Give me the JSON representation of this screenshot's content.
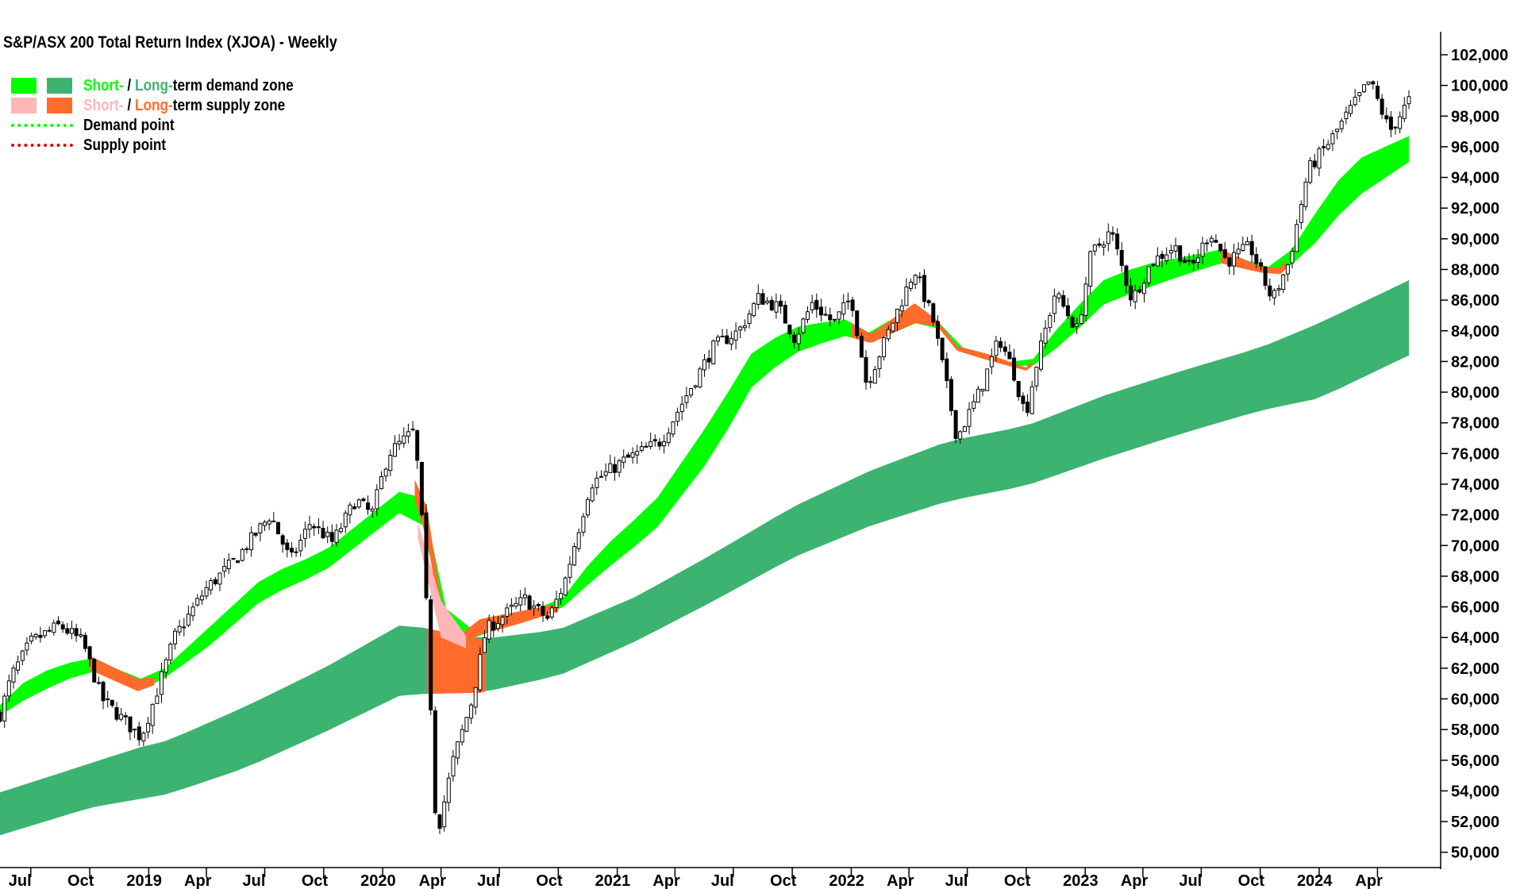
{
  "title": "S&P/ASX 200 Total Return Index (XJOA) - Weekly",
  "colors": {
    "short_demand": "#00ff00",
    "long_demand": "#3cb371",
    "short_supply": "#ffb6b9",
    "long_supply": "#ff6b2b",
    "demand_point": "#00ff00",
    "supply_point": "#dd0000"
  },
  "legend": {
    "demand_zone": {
      "short": "Short-",
      "sep": " / ",
      "long": "Long-",
      "rest": "term demand zone"
    },
    "supply_zone": {
      "short": "Short-",
      "sep": " / ",
      "long": "Long-",
      "rest": "term supply zone"
    },
    "demand_point": "Demand point",
    "supply_point": "Supply point"
  },
  "chart_data": {
    "type": "candlestick",
    "frequency": "weekly",
    "title": "S&P/ASX 200 Total Return Index (XJOA) - Weekly",
    "y_axis": {
      "position": "right",
      "min": 49000,
      "max": 103500,
      "ticks": [
        50000,
        52000,
        54000,
        56000,
        58000,
        60000,
        62000,
        64000,
        66000,
        68000,
        70000,
        72000,
        74000,
        76000,
        78000,
        80000,
        82000,
        84000,
        86000,
        88000,
        90000,
        92000,
        94000,
        96000,
        98000,
        100000,
        102000
      ],
      "tick_labels": [
        "50,000",
        "52,000",
        "54,000",
        "56,000",
        "58,000",
        "60,000",
        "62,000",
        "64,000",
        "66,000",
        "68,000",
        "70,000",
        "72,000",
        "74,000",
        "76,000",
        "78,000",
        "80,000",
        "82,000",
        "84,000",
        "86,000",
        "88,000",
        "90,000",
        "92,000",
        "94,000",
        "96,000",
        "98,000",
        "100,000",
        "102,000"
      ]
    },
    "x_axis": {
      "range": [
        "2018-05-14",
        "2024-05-20"
      ],
      "ticks": [
        {
          "date": "2018-07-01",
          "label": "Jul"
        },
        {
          "date": "2018-10-01",
          "label": "Oct"
        },
        {
          "date": "2019-01-01",
          "label": "2019"
        },
        {
          "date": "2019-04-01",
          "label": "Apr"
        },
        {
          "date": "2019-07-01",
          "label": "Jul"
        },
        {
          "date": "2019-10-01",
          "label": "Oct"
        },
        {
          "date": "2020-01-01",
          "label": "2020"
        },
        {
          "date": "2020-04-01",
          "label": "Apr"
        },
        {
          "date": "2020-07-01",
          "label": "Jul"
        },
        {
          "date": "2020-10-01",
          "label": "Oct"
        },
        {
          "date": "2021-01-01",
          "label": "2021"
        },
        {
          "date": "2021-04-01",
          "label": "Apr"
        },
        {
          "date": "2021-07-01",
          "label": "Jul"
        },
        {
          "date": "2021-10-01",
          "label": "Oct"
        },
        {
          "date": "2022-01-01",
          "label": "2022"
        },
        {
          "date": "2022-04-01",
          "label": "Apr"
        },
        {
          "date": "2022-07-01",
          "label": "Jul"
        },
        {
          "date": "2022-10-01",
          "label": "Oct"
        },
        {
          "date": "2023-01-01",
          "label": "2023"
        },
        {
          "date": "2023-04-01",
          "label": "Apr"
        },
        {
          "date": "2023-07-01",
          "label": "Jul"
        },
        {
          "date": "2023-10-01",
          "label": "Oct"
        },
        {
          "date": "2024-01-01",
          "label": "2024"
        },
        {
          "date": "2024-04-01",
          "label": "Apr"
        }
      ]
    },
    "price_path": [
      [
        "2018-05-14",
        59000
      ],
      [
        "2018-06-01",
        61500
      ],
      [
        "2018-07-01",
        63700
      ],
      [
        "2018-08-15",
        64800
      ],
      [
        "2018-09-20",
        63700
      ],
      [
        "2018-10-20",
        60000
      ],
      [
        "2018-12-20",
        57500
      ],
      [
        "2019-01-10",
        60000
      ],
      [
        "2019-02-10",
        64000
      ],
      [
        "2019-04-01",
        67200
      ],
      [
        "2019-05-15",
        69000
      ],
      [
        "2019-07-10",
        72000
      ],
      [
        "2019-08-10",
        69000
      ],
      [
        "2019-09-10",
        71500
      ],
      [
        "2019-10-15",
        70200
      ],
      [
        "2019-11-20",
        73000
      ],
      [
        "2019-12-15",
        72000
      ],
      [
        "2020-01-10",
        76000
      ],
      [
        "2020-02-20",
        77500
      ],
      [
        "2020-03-05",
        70000
      ],
      [
        "2020-03-25",
        51000
      ],
      [
        "2020-04-20",
        56000
      ],
      [
        "2020-05-20",
        60000
      ],
      [
        "2020-06-10",
        64500
      ],
      [
        "2020-07-10",
        65500
      ],
      [
        "2020-08-10",
        66500
      ],
      [
        "2020-09-15",
        65200
      ],
      [
        "2020-10-10",
        67500
      ],
      [
        "2020-11-20",
        74000
      ],
      [
        "2021-01-10",
        75500
      ],
      [
        "2021-03-10",
        76800
      ],
      [
        "2021-04-15",
        79500
      ],
      [
        "2021-06-01",
        83000
      ],
      [
        "2021-07-10",
        84000
      ],
      [
        "2021-08-10",
        86200
      ],
      [
        "2021-09-10",
        85500
      ],
      [
        "2021-10-05",
        83500
      ],
      [
        "2021-11-01",
        85800
      ],
      [
        "2021-12-05",
        84500
      ],
      [
        "2022-01-01",
        86200
      ],
      [
        "2022-01-25",
        80500
      ],
      [
        "2022-03-01",
        84000
      ],
      [
        "2022-04-10",
        88000
      ],
      [
        "2022-05-10",
        84500
      ],
      [
        "2022-06-15",
        77000
      ],
      [
        "2022-07-20",
        80000
      ],
      [
        "2022-08-20",
        83500
      ],
      [
        "2022-09-10",
        81500
      ],
      [
        "2022-09-30",
        78500
      ],
      [
        "2022-10-15",
        81500
      ],
      [
        "2022-11-15",
        86500
      ],
      [
        "2022-12-20",
        84000
      ],
      [
        "2023-01-10",
        89000
      ],
      [
        "2023-02-10",
        90500
      ],
      [
        "2023-03-15",
        86000
      ],
      [
        "2023-04-15",
        88500
      ],
      [
        "2023-05-20",
        89500
      ],
      [
        "2023-06-15",
        88000
      ],
      [
        "2023-07-15",
        90500
      ],
      [
        "2023-08-10",
        88500
      ],
      [
        "2023-09-15",
        89500
      ],
      [
        "2023-10-20",
        86000
      ],
      [
        "2023-11-15",
        88500
      ],
      [
        "2023-12-15",
        94500
      ],
      [
        "2024-01-20",
        96500
      ],
      [
        "2024-02-20",
        98500
      ],
      [
        "2024-03-20",
        100300
      ],
      [
        "2024-04-20",
        97000
      ],
      [
        "2024-05-20",
        99000
      ]
    ],
    "bands": {
      "long_term": {
        "x_range": [
          "2018-05-14",
          "2024-05-20"
        ],
        "upper": [
          [
            "2018-05-14",
            53900
          ],
          [
            "2018-12-15",
            56800
          ],
          [
            "2019-02-01",
            57300
          ],
          [
            "2019-06-01",
            59500
          ],
          [
            "2019-10-01",
            62000
          ],
          [
            "2020-02-01",
            64900
          ],
          [
            "2020-06-01",
            63900
          ],
          [
            "2020-10-01",
            64500
          ],
          [
            "2021-02-01",
            66700
          ],
          [
            "2021-06-01",
            69500
          ],
          [
            "2021-10-01",
            72500
          ],
          [
            "2022-02-01",
            74900
          ],
          [
            "2022-06-01",
            76800
          ],
          [
            "2022-10-01",
            77800
          ],
          [
            "2023-02-01",
            79800
          ],
          [
            "2023-06-01",
            81400
          ],
          [
            "2023-10-01",
            82900
          ],
          [
            "2024-01-01",
            84500
          ],
          [
            "2024-05-20",
            87300
          ]
        ],
        "lower": [
          [
            "2018-05-14",
            51100
          ],
          [
            "2018-10-01",
            52900
          ],
          [
            "2019-02-01",
            53800
          ],
          [
            "2019-06-01",
            55500
          ],
          [
            "2019-10-01",
            57800
          ],
          [
            "2020-02-01",
            60300
          ],
          [
            "2020-06-01",
            60400
          ],
          [
            "2020-10-01",
            61500
          ],
          [
            "2021-02-01",
            63800
          ],
          [
            "2021-06-01",
            66400
          ],
          [
            "2021-10-01",
            69200
          ],
          [
            "2022-02-01",
            71300
          ],
          [
            "2022-06-01",
            72900
          ],
          [
            "2022-10-01",
            73900
          ],
          [
            "2023-02-01",
            75700
          ],
          [
            "2023-06-01",
            77300
          ],
          [
            "2023-10-01",
            78800
          ],
          [
            "2024-01-01",
            79600
          ],
          [
            "2024-05-20",
            82400
          ]
        ],
        "supply_interval": [
          "2020-03-10",
          "2020-06-10"
        ]
      },
      "short_term": {
        "upper": [
          [
            "2018-05-14",
            59600
          ],
          [
            "2018-07-01",
            61500
          ],
          [
            "2018-10-01",
            62800
          ],
          [
            "2018-12-15",
            61300
          ],
          [
            "2019-01-10",
            61400
          ],
          [
            "2019-04-01",
            64500
          ],
          [
            "2019-07-01",
            68000
          ],
          [
            "2019-10-01",
            69600
          ],
          [
            "2020-02-20",
            74300
          ],
          [
            "2020-03-10",
            72500
          ],
          [
            "2020-04-01",
            66500
          ],
          [
            "2020-05-01",
            64200
          ],
          [
            "2020-06-01",
            65200
          ],
          [
            "2020-08-01",
            65700
          ],
          [
            "2020-10-01",
            66200
          ],
          [
            "2020-12-01",
            69500
          ],
          [
            "2021-03-01",
            72900
          ],
          [
            "2021-06-01",
            78500
          ],
          [
            "2021-08-01",
            82700
          ],
          [
            "2021-10-01",
            84200
          ],
          [
            "2021-12-20",
            84800
          ],
          [
            "2022-02-01",
            83800
          ],
          [
            "2022-04-10",
            85800
          ],
          [
            "2022-05-15",
            84700
          ],
          [
            "2022-06-15",
            83000
          ],
          [
            "2022-08-01",
            82500
          ],
          [
            "2022-10-01",
            81600
          ],
          [
            "2022-12-01",
            84800
          ],
          [
            "2023-02-01",
            87400
          ],
          [
            "2023-04-01",
            88300
          ],
          [
            "2023-06-01",
            88800
          ],
          [
            "2023-08-01",
            89300
          ],
          [
            "2023-10-01",
            88200
          ],
          [
            "2023-11-01",
            88100
          ],
          [
            "2023-12-15",
            91000
          ],
          [
            "2024-02-20",
            95000
          ],
          [
            "2024-05-20",
            96700
          ]
        ],
        "lower": [
          [
            "2018-05-14",
            58900
          ],
          [
            "2018-07-01",
            60200
          ],
          [
            "2018-10-01",
            61900
          ],
          [
            "2018-12-15",
            60500
          ],
          [
            "2019-01-10",
            60900
          ],
          [
            "2019-04-01",
            63300
          ],
          [
            "2019-07-01",
            66600
          ],
          [
            "2019-10-01",
            68300
          ],
          [
            "2020-02-20",
            72900
          ],
          [
            "2020-03-10",
            70500
          ],
          [
            "2020-04-01",
            65000
          ],
          [
            "2020-05-01",
            63600
          ],
          [
            "2020-06-01",
            64200
          ],
          [
            "2020-08-01",
            64900
          ],
          [
            "2020-10-01",
            65700
          ],
          [
            "2020-12-01",
            68000
          ],
          [
            "2021-03-01",
            71000
          ],
          [
            "2021-06-01",
            76000
          ],
          [
            "2021-08-01",
            80500
          ],
          [
            "2021-10-01",
            82500
          ],
          [
            "2021-12-20",
            83700
          ],
          [
            "2022-02-01",
            83200
          ],
          [
            "2022-04-10",
            84500
          ],
          [
            "2022-05-15",
            84300
          ],
          [
            "2022-06-15",
            82700
          ],
          [
            "2022-08-01",
            82100
          ],
          [
            "2022-10-01",
            81400
          ],
          [
            "2022-12-01",
            83300
          ],
          [
            "2023-02-01",
            85800
          ],
          [
            "2023-04-01",
            86700
          ],
          [
            "2023-06-01",
            87600
          ],
          [
            "2023-08-01",
            88400
          ],
          [
            "2023-10-01",
            87800
          ],
          [
            "2023-11-01",
            87700
          ],
          [
            "2023-12-15",
            89200
          ],
          [
            "2024-02-20",
            92500
          ],
          [
            "2024-05-20",
            95000
          ]
        ],
        "supply_intervals": [
          [
            "2018-10-01",
            "2019-01-10"
          ],
          [
            "2020-02-20",
            "2020-10-01"
          ],
          [
            "2022-01-01",
            "2022-10-10"
          ],
          [
            "2023-08-01",
            "2023-11-10"
          ]
        ]
      }
    }
  }
}
